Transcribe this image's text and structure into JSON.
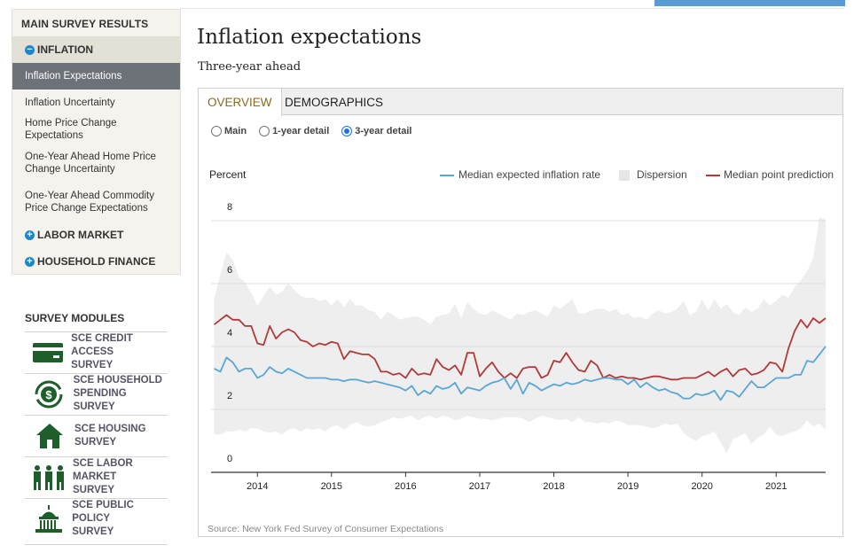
{
  "sidebar": {
    "heading": "MAIN SURVEY RESULTS",
    "sections": [
      {
        "label": "INFLATION",
        "icon": "minus-circle-icon"
      },
      {
        "label": "LABOR MARKET",
        "icon": "plus-circle-icon"
      },
      {
        "label": "HOUSEHOLD FINANCE",
        "icon": "plus-circle-icon"
      }
    ],
    "items": [
      {
        "label": "Inflation Expectations"
      },
      {
        "label": "Inflation Uncertainty"
      },
      {
        "label": "Home Price Change Expectations"
      },
      {
        "label": "One-Year Ahead Home Price Change Uncertainty"
      },
      {
        "label": "One-Year Ahead Commodity Price Change Expectations"
      }
    ],
    "modules_heading": "SURVEY MODULES",
    "modules": [
      {
        "line1": "SCE CREDIT ACCESS",
        "line2": "SURVEY",
        "icon": "credit-card-icon"
      },
      {
        "line1": "SCE HOUSEHOLD",
        "line2": "SPENDING SURVEY",
        "icon": "dollar-cycle-icon"
      },
      {
        "line1": "SCE HOUSING",
        "line2": "SURVEY",
        "icon": "house-icon"
      },
      {
        "line1": "SCE LABOR MARKET",
        "line2": "SURVEY",
        "icon": "workers-icon"
      },
      {
        "line1": "SCE PUBLIC POLICY",
        "line2": "SURVEY",
        "icon": "capitol-icon"
      }
    ]
  },
  "main": {
    "title": "Inflation expectations",
    "subtitle": "Three-year ahead",
    "tabs": {
      "overview": "OVERVIEW",
      "demographics": "DEMOGRAPHICS"
    },
    "radios": [
      {
        "label": "Main",
        "checked": false
      },
      {
        "label": "1-year detail",
        "checked": false
      },
      {
        "label": "3-year detail",
        "checked": true
      }
    ],
    "source": "Source: New York Fed Survey of Consumer Expectations"
  },
  "colors": {
    "median": "#5aa6d6",
    "point": "#b03a3a",
    "dispersion": "#eeeeee",
    "accent": "#1d87c9"
  },
  "chart_data": {
    "type": "line",
    "ylabel": "Percent",
    "ylim": [
      0,
      8
    ],
    "yticks": [
      0,
      2,
      4,
      6,
      8
    ],
    "xlim": [
      2013.375,
      2021.667
    ],
    "xtick_values": [
      2014,
      2015,
      2016,
      2017,
      2018,
      2019,
      2020,
      2021
    ],
    "xtick_labels": [
      "2014",
      "2015",
      "2016",
      "2017",
      "2018",
      "2019",
      "2020",
      "2021"
    ],
    "x_start": 2013.417,
    "x_step": 0.08333,
    "legend": [
      "Median expected inflation rate",
      "Dispersion",
      "Median point prediction"
    ],
    "series": [
      {
        "name": "Median expected inflation rate",
        "values": [
          3.3,
          3.2,
          3.65,
          3.5,
          3.2,
          3.3,
          3.3,
          3.0,
          3.1,
          3.35,
          3.2,
          3.15,
          3.3,
          3.2,
          3.1,
          3.0,
          3.0,
          3.0,
          3.0,
          2.95,
          2.95,
          2.9,
          2.95,
          2.95,
          2.9,
          2.85,
          2.9,
          2.85,
          2.8,
          2.75,
          2.7,
          2.6,
          2.75,
          2.45,
          2.6,
          2.5,
          2.75,
          2.65,
          2.7,
          2.85,
          2.5,
          2.7,
          2.65,
          2.6,
          2.75,
          2.85,
          2.9,
          3.0,
          2.65,
          2.95,
          2.5,
          2.85,
          2.75,
          2.6,
          2.7,
          2.8,
          2.75,
          2.85,
          2.8,
          2.85,
          2.95,
          2.9,
          2.95,
          3.0,
          3.0,
          2.95,
          2.95,
          2.8,
          2.95,
          2.7,
          2.85,
          2.7,
          2.6,
          2.65,
          2.55,
          2.5,
          2.35,
          2.35,
          2.5,
          2.45,
          2.5,
          2.6,
          2.3,
          2.6,
          2.55,
          2.4,
          2.65,
          2.9,
          2.7,
          2.7,
          2.85,
          3.0,
          3.0,
          3.0,
          3.1,
          3.1,
          3.55,
          3.5,
          3.75,
          4.0
        ]
      },
      {
        "name": "Median point prediction",
        "values": [
          4.7,
          4.85,
          5.0,
          4.85,
          4.85,
          4.65,
          4.65,
          4.1,
          4.05,
          4.65,
          4.25,
          4.45,
          4.55,
          4.45,
          4.2,
          4.15,
          4.0,
          4.1,
          4.05,
          4.15,
          4.1,
          3.6,
          3.85,
          3.8,
          3.75,
          3.75,
          3.6,
          3.2,
          3.2,
          3.1,
          3.15,
          3.0,
          3.3,
          3.1,
          3.15,
          3.1,
          3.6,
          3.35,
          3.25,
          3.4,
          3.1,
          3.8,
          3.8,
          3.05,
          3.3,
          3.5,
          3.2,
          3.0,
          3.15,
          3.0,
          3.3,
          3.35,
          3.35,
          3.0,
          3.1,
          3.55,
          3.5,
          3.8,
          3.5,
          3.25,
          3.2,
          3.55,
          3.4,
          3.0,
          3.1,
          3.0,
          3.05,
          3.0,
          3.0,
          2.95,
          3.0,
          3.05,
          3.05,
          3.0,
          2.95,
          2.95,
          3.0,
          3.0,
          3.0,
          3.1,
          3.2,
          3.05,
          3.2,
          3.3,
          3.05,
          3.25,
          3.3,
          3.1,
          3.15,
          3.25,
          3.5,
          3.45,
          3.2,
          3.95,
          4.5,
          4.85,
          4.6,
          4.9,
          4.75,
          4.9
        ]
      },
      {
        "name": "Dispersion (lower)",
        "values": [
          1.2,
          1.2,
          1.3,
          1.3,
          1.35,
          1.3,
          1.4,
          1.4,
          1.3,
          1.25,
          1.3,
          1.2,
          1.35,
          1.4,
          1.3,
          1.4,
          1.35,
          1.4,
          1.3,
          1.45,
          1.5,
          1.35,
          1.5,
          1.6,
          1.5,
          1.45,
          1.5,
          1.6,
          1.65,
          1.75,
          1.7,
          1.75,
          1.8,
          1.65,
          1.75,
          1.8,
          1.7,
          1.8,
          1.75,
          1.65,
          1.7,
          1.8,
          1.75,
          1.7,
          1.7,
          1.65,
          1.7,
          1.75,
          1.75,
          1.75,
          1.7,
          1.6,
          1.7,
          1.8,
          1.75,
          1.7,
          1.65,
          1.7,
          1.6,
          1.75,
          1.6,
          1.6,
          1.55,
          1.6,
          1.55,
          1.65,
          1.6,
          1.5,
          1.5,
          1.5,
          1.45,
          1.4,
          1.45,
          1.55,
          1.5,
          1.55,
          1.25,
          1.1,
          1.0,
          1.15,
          1.2,
          1.3,
          0.95,
          0.6,
          1.05,
          1.15,
          1.25,
          0.9,
          1.1,
          1.2,
          1.45,
          1.2,
          1.15,
          1.25,
          1.3,
          1.4,
          1.65,
          1.45,
          1.55,
          1.35
        ]
      },
      {
        "name": "Dispersion (upper)",
        "values": [
          5.5,
          6.3,
          7.0,
          6.75,
          6.2,
          6.05,
          5.7,
          5.3,
          5.6,
          5.9,
          5.65,
          5.75,
          6.0,
          5.8,
          5.6,
          5.55,
          5.55,
          5.45,
          5.5,
          5.3,
          5.5,
          5.25,
          5.5,
          5.3,
          5.3,
          5.15,
          5.1,
          4.85,
          5.1,
          5.0,
          4.85,
          4.9,
          4.95,
          4.95,
          4.85,
          4.7,
          4.95,
          5.0,
          5.05,
          5.35,
          4.9,
          5.4,
          5.2,
          5.05,
          5.0,
          5.15,
          5.05,
          4.95,
          4.85,
          5.05,
          5.0,
          5.1,
          5.15,
          5.05,
          4.95,
          5.3,
          5.2,
          5.35,
          5.5,
          5.05,
          5.05,
          5.15,
          5.2,
          5.2,
          5.1,
          5.2,
          5.0,
          5.05,
          4.9,
          4.95,
          4.85,
          5.05,
          5.15,
          5.05,
          5.1,
          5.2,
          5.45,
          5.0,
          5.1,
          5.5,
          5.15,
          5.5,
          5.2,
          5.35,
          5.1,
          5.0,
          5.25,
          5.1,
          5.2,
          5.5,
          5.3,
          5.45,
          5.65,
          5.55,
          5.9,
          6.1,
          6.4,
          6.8,
          8.1,
          8.05
        ]
      }
    ]
  }
}
